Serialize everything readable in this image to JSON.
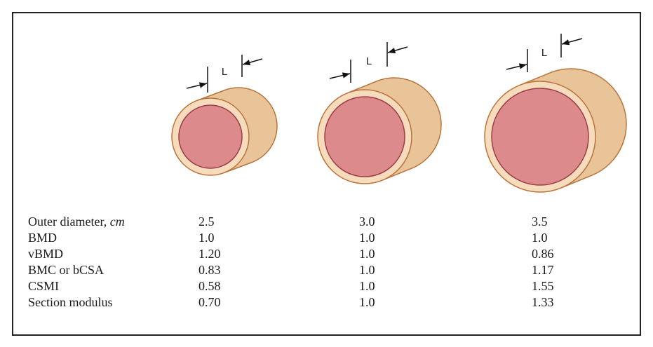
{
  "figure": {
    "dimension_labels": [
      "L",
      "L",
      "L"
    ],
    "table": {
      "rows": [
        {
          "label": "Outer diameter,",
          "unit": "cm",
          "values": [
            "2.5",
            "3.0",
            "3.5"
          ]
        },
        {
          "label": "BMD",
          "values": [
            "1.0",
            "1.0",
            "1.0"
          ]
        },
        {
          "label": "vBMD",
          "values": [
            "1.20",
            "1.0",
            "0.86"
          ]
        },
        {
          "label": "BMC or bCSA",
          "values": [
            "0.83",
            "1.0",
            "1.17"
          ]
        },
        {
          "label": "CSMI",
          "values": [
            "0.58",
            "1.0",
            "1.55"
          ]
        },
        {
          "label": "Section modulus",
          "values": [
            "0.70",
            "1.0",
            "1.33"
          ]
        }
      ]
    }
  }
}
